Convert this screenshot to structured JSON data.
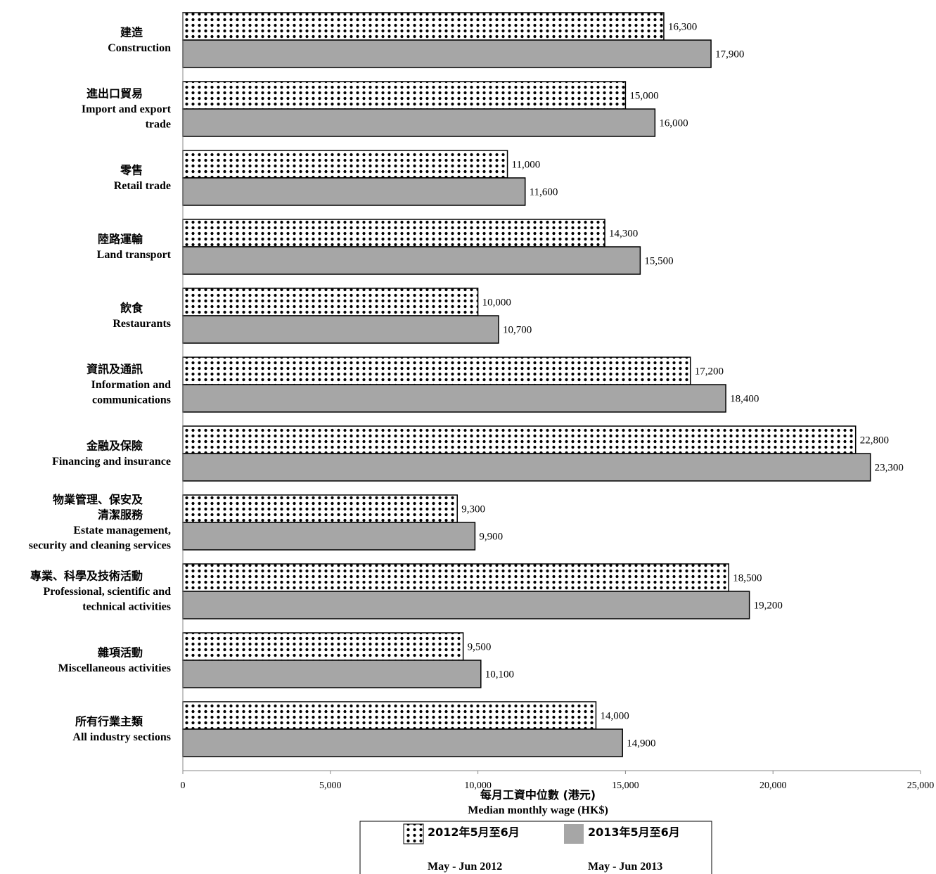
{
  "chart_data": {
    "type": "bar",
    "orientation": "horizontal",
    "categories": [
      [
        "建造",
        "Construction"
      ],
      [
        "進出口貿易",
        "Import and export",
        "trade"
      ],
      [
        "零售",
        "Retail trade"
      ],
      [
        "陸路運輸",
        "Land transport"
      ],
      [
        "飲食",
        "Restaurants"
      ],
      [
        "資訊及通訊",
        "Information and",
        "communications"
      ],
      [
        "金融及保險",
        "Financing and insurance"
      ],
      [
        "物業管理、保安及",
        "清潔服務",
        "Estate management,",
        "security and cleaning services"
      ],
      [
        "專業、科學及技術活動",
        "Professional, scientific and",
        "technical activities"
      ],
      [
        "雜項活動",
        "Miscellaneous activities"
      ],
      [
        "所有行業主類",
        "All industry sections"
      ]
    ],
    "series": [
      {
        "name": [
          "2012年5月至6月",
          "May - Jun 2012"
        ],
        "pattern": "dots",
        "values": [
          16300,
          15000,
          11000,
          14300,
          10000,
          17200,
          22800,
          9300,
          18500,
          9500,
          14000
        ],
        "value_labels": [
          "16,300",
          "15,000",
          "11,000",
          "14,300",
          "10,000",
          "17,200",
          "22,800",
          "9,300",
          "18,500",
          "9,500",
          "14,000"
        ]
      },
      {
        "name": [
          "2013年5月至6月",
          "May - Jun 2013"
        ],
        "color": "#a6a6a6",
        "values": [
          17900,
          16000,
          11600,
          15500,
          10700,
          18400,
          23300,
          9900,
          19200,
          10100,
          14900
        ],
        "value_labels": [
          "17,900",
          "16,000",
          "11,600",
          "15,500",
          "10,700",
          "18,400",
          "23,300",
          "9,900",
          "19,200",
          "10,100",
          "14,900"
        ]
      }
    ],
    "xlim": [
      0,
      25000
    ],
    "x_ticks": [
      0,
      5000,
      10000,
      15000,
      20000,
      25000
    ],
    "x_tick_labels": [
      "0",
      "5,000",
      "10,000",
      "15,000",
      "20,000",
      "25,000"
    ],
    "xlabel": [
      "每月工資中位數 (港元)",
      "Median monthly wage (HK$)"
    ],
    "grid": false,
    "legend_position": "bottom"
  }
}
